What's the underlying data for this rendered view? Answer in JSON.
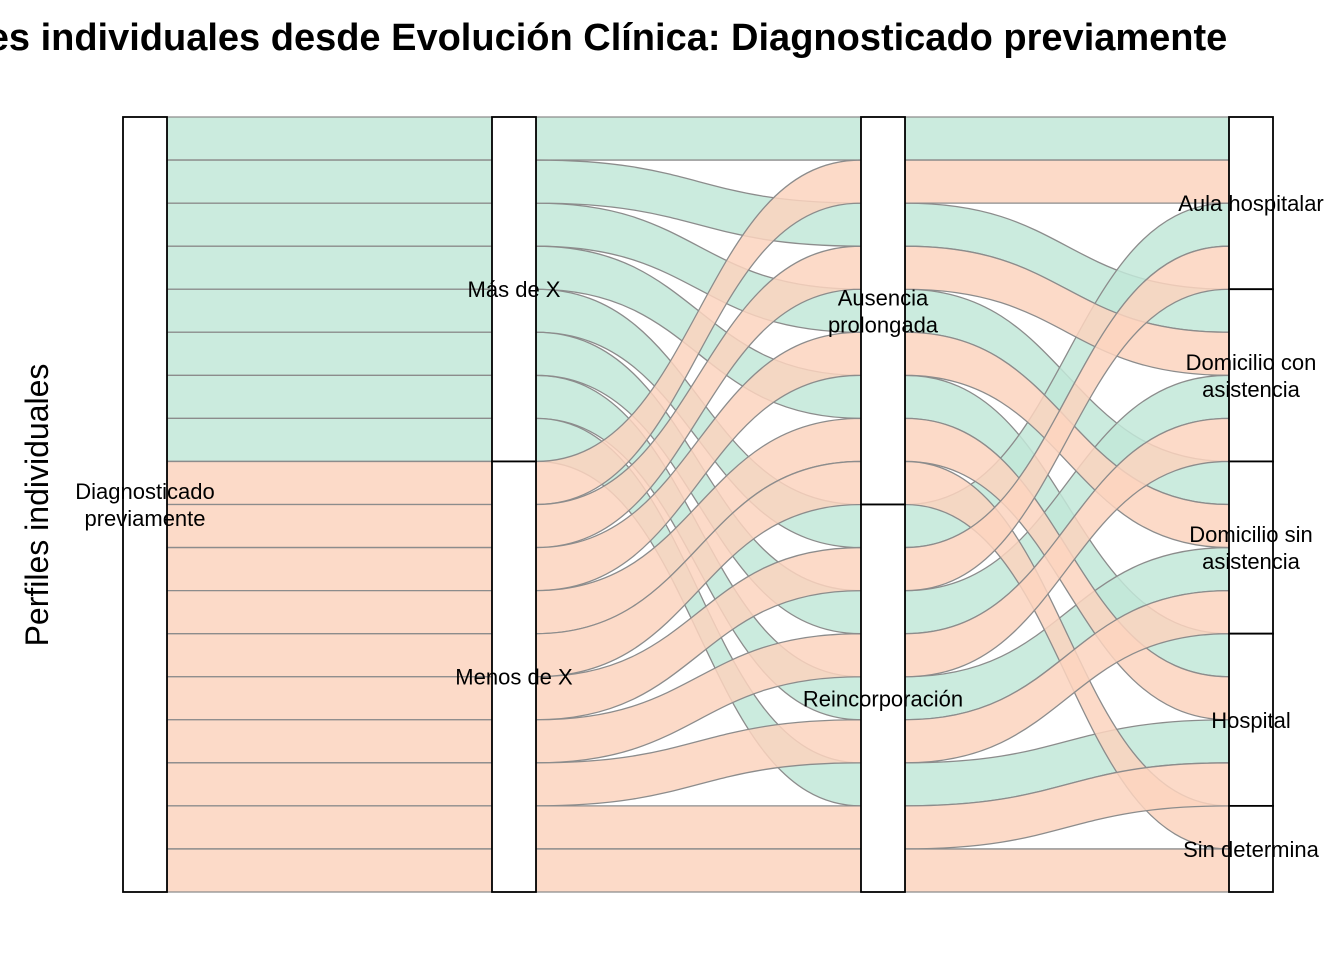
{
  "chart_data": {
    "type": "alluvial",
    "title": "Perfiles individuales desde Evolución Clínica: Diagnosticado previamente",
    "ylabel": "Perfiles individuales",
    "fill_colors": {
      "Más de X": "#c2e8d8",
      "Menos de X": "#fbd4be"
    },
    "axes": [
      {
        "strata": [
          {
            "name": "Diagnosticado previamente",
            "lines": [
              "Diagnosticado",
              "previamente"
            ],
            "count": 18
          }
        ]
      },
      {
        "strata": [
          {
            "name": "Más de X",
            "lines": [
              "Más de X"
            ],
            "count": 8
          },
          {
            "name": "Menos de X",
            "lines": [
              "Menos de X"
            ],
            "count": 10
          }
        ]
      },
      {
        "strata": [
          {
            "name": "Ausencia prolongada",
            "lines": [
              "Ausencia",
              "prolongada"
            ],
            "count": 9
          },
          {
            "name": "Reincorporación",
            "lines": [
              "Reincorporación"
            ],
            "count": 9
          }
        ]
      },
      {
        "strata": [
          {
            "name": "Aula hospitalar",
            "lines": [
              "Aula hospitalar"
            ],
            "count": 4
          },
          {
            "name": "Domicilio con asistencia",
            "lines": [
              "Domicilio con",
              "asistencia"
            ],
            "count": 4
          },
          {
            "name": "Domicilio sin asistencia",
            "lines": [
              "Domicilio sin",
              "asistencia"
            ],
            "count": 4
          },
          {
            "name": "Hospital",
            "lines": [
              "Hospital"
            ],
            "count": 4
          },
          {
            "name": "Sin determina",
            "lines": [
              "Sin determina"
            ],
            "count": 2
          }
        ]
      }
    ],
    "flows": [
      {
        "fill": "Más de X",
        "path": [
          "Diagnosticado previamente",
          "Más de X",
          "Ausencia prolongada",
          "Aula hospitalar"
        ]
      },
      {
        "fill": "Más de X",
        "path": [
          "Diagnosticado previamente",
          "Más de X",
          "Ausencia prolongada",
          "Domicilio sin asistencia"
        ]
      },
      {
        "fill": "Más de X",
        "path": [
          "Diagnosticado previamente",
          "Más de X",
          "Ausencia prolongada",
          "Domicilio con asistencia"
        ]
      },
      {
        "fill": "Más de X",
        "path": [
          "Diagnosticado previamente",
          "Más de X",
          "Ausencia prolongada",
          "Hospital"
        ]
      },
      {
        "fill": "Más de X",
        "path": [
          "Diagnosticado previamente",
          "Más de X",
          "Reincorporación",
          "Aula hospitalar"
        ]
      },
      {
        "fill": "Más de X",
        "path": [
          "Diagnosticado previamente",
          "Más de X",
          "Reincorporación",
          "Domicilio sin asistencia"
        ]
      },
      {
        "fill": "Más de X",
        "path": [
          "Diagnosticado previamente",
          "Más de X",
          "Reincorporación",
          "Hospital"
        ]
      },
      {
        "fill": "Más de X",
        "path": [
          "Diagnosticado previamente",
          "Más de X",
          "Reincorporación",
          "Domicilio con asistencia"
        ]
      },
      {
        "fill": "Menos de X",
        "path": [
          "Diagnosticado previamente",
          "Menos de X",
          "Ausencia prolongada",
          "Aula hospitalar"
        ]
      },
      {
        "fill": "Menos de X",
        "path": [
          "Diagnosticado previamente",
          "Menos de X",
          "Ausencia prolongada",
          "Domicilio con asistencia"
        ]
      },
      {
        "fill": "Menos de X",
        "path": [
          "Diagnosticado previamente",
          "Menos de X",
          "Ausencia prolongada",
          "Domicilio sin asistencia"
        ]
      },
      {
        "fill": "Menos de X",
        "path": [
          "Diagnosticado previamente",
          "Menos de X",
          "Ausencia prolongada",
          "Hospital"
        ]
      },
      {
        "fill": "Menos de X",
        "path": [
          "Diagnosticado previamente",
          "Menos de X",
          "Ausencia prolongada",
          "Sin determina"
        ]
      },
      {
        "fill": "Menos de X",
        "path": [
          "Diagnosticado previamente",
          "Menos de X",
          "Reincorporación",
          "Aula hospitalar"
        ]
      },
      {
        "fill": "Menos de X",
        "path": [
          "Diagnosticado previamente",
          "Menos de X",
          "Reincorporación",
          "Domicilio con asistencia"
        ]
      },
      {
        "fill": "Menos de X",
        "path": [
          "Diagnosticado previamente",
          "Menos de X",
          "Reincorporación",
          "Domicilio sin asistencia"
        ]
      },
      {
        "fill": "Menos de X",
        "path": [
          "Diagnosticado previamente",
          "Menos de X",
          "Reincorporación",
          "Hospital"
        ]
      },
      {
        "fill": "Menos de X",
        "path": [
          "Diagnosticado previamente",
          "Menos de X",
          "Reincorporación",
          "Sin determina"
        ]
      }
    ]
  }
}
